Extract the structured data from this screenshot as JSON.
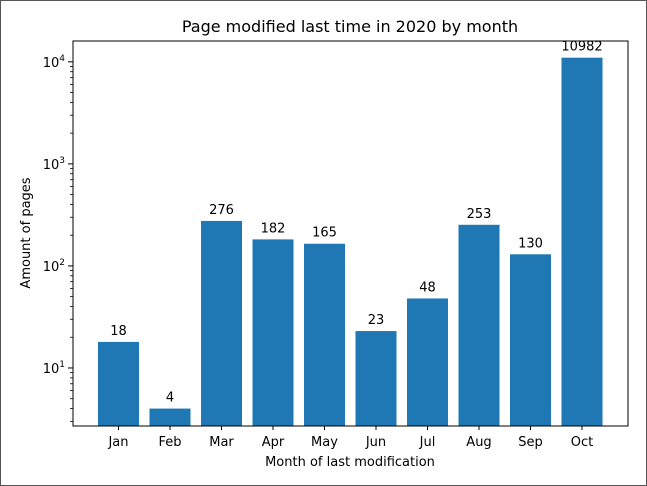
{
  "chart_data": {
    "type": "bar",
    "title": "Page modified last time in 2020 by month",
    "xlabel": "Month of last modification",
    "ylabel": "Amount of pages",
    "yscale": "log",
    "ylim": [
      2.7,
      16000
    ],
    "yticks": [
      {
        "value": 10,
        "base": "10",
        "exp": "1"
      },
      {
        "value": 100,
        "base": "10",
        "exp": "2"
      },
      {
        "value": 1000,
        "base": "10",
        "exp": "3"
      },
      {
        "value": 10000,
        "base": "10",
        "exp": "4"
      }
    ],
    "categories": [
      "Jan",
      "Feb",
      "Mar",
      "Apr",
      "May",
      "Jun",
      "Jul",
      "Aug",
      "Sep",
      "Oct"
    ],
    "values": [
      18,
      4,
      276,
      182,
      165,
      23,
      48,
      253,
      130,
      10982
    ],
    "data_labels": [
      "18",
      "4",
      "276",
      "182",
      "165",
      "23",
      "48",
      "253",
      "130",
      "10982"
    ],
    "bar_color": "#1f77b4",
    "grid": false,
    "legend": "none"
  }
}
